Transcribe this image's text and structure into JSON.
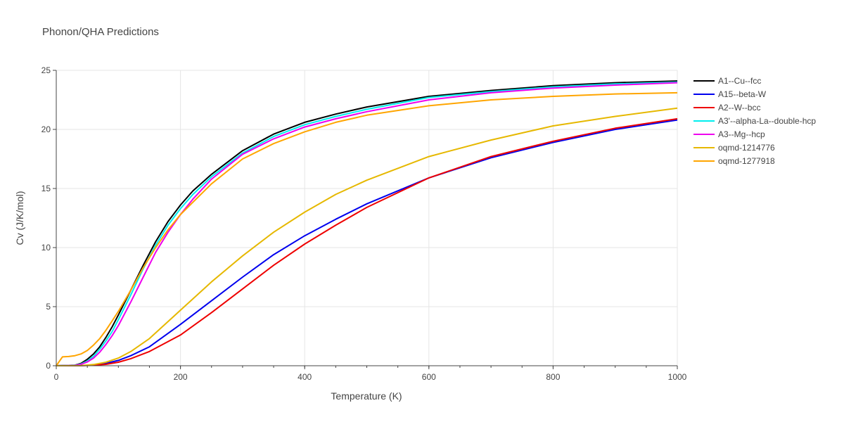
{
  "chart_data": {
    "type": "line",
    "title": "Phonon/QHA Predictions",
    "xlabel": "Temperature (K)",
    "ylabel": "Cv (J/K/mol)",
    "xlim": [
      0,
      1000
    ],
    "ylim": [
      0,
      25
    ],
    "xticks": [
      "0",
      "200",
      "400",
      "600",
      "800",
      "1000"
    ],
    "yticks": [
      "0",
      "5",
      "10",
      "15",
      "20",
      "25"
    ],
    "grid": true,
    "legend_position": "top-right",
    "series": [
      {
        "name": "A1--Cu--fcc",
        "color": "#000000",
        "x": [
          0,
          30,
          40,
          50,
          60,
          70,
          80,
          90,
          100,
          120,
          140,
          160,
          180,
          200,
          220,
          250,
          300,
          350,
          400,
          450,
          500,
          600,
          700,
          800,
          900,
          1000
        ],
        "y": [
          0,
          0.05,
          0.2,
          0.55,
          1.0,
          1.6,
          2.4,
          3.3,
          4.3,
          6.4,
          8.5,
          10.5,
          12.2,
          13.6,
          14.8,
          16.2,
          18.2,
          19.6,
          20.6,
          21.3,
          21.9,
          22.8,
          23.3,
          23.7,
          23.95,
          24.1
        ]
      },
      {
        "name": "A15--beta-W",
        "color": "#0000ee",
        "x": [
          0,
          40,
          60,
          80,
          100,
          120,
          150,
          200,
          250,
          300,
          350,
          400,
          450,
          500,
          600,
          700,
          800,
          900,
          1000
        ],
        "y": [
          0,
          0.01,
          0.05,
          0.2,
          0.45,
          0.85,
          1.6,
          3.5,
          5.5,
          7.5,
          9.4,
          11.0,
          12.4,
          13.7,
          15.9,
          17.6,
          18.9,
          20.0,
          20.8
        ]
      },
      {
        "name": "A2--W--bcc",
        "color": "#ee0000",
        "x": [
          0,
          40,
          60,
          80,
          100,
          120,
          150,
          200,
          250,
          300,
          350,
          400,
          450,
          500,
          600,
          700,
          800,
          900,
          1000
        ],
        "y": [
          0,
          0.01,
          0.04,
          0.12,
          0.3,
          0.6,
          1.2,
          2.6,
          4.5,
          6.5,
          8.5,
          10.3,
          11.9,
          13.4,
          15.9,
          17.7,
          19.0,
          20.1,
          20.9
        ]
      },
      {
        "name": "A3'--alpha-La--double-hcp",
        "color": "#00eeee",
        "x": [
          0,
          30,
          40,
          50,
          60,
          70,
          80,
          90,
          100,
          120,
          140,
          160,
          180,
          200,
          220,
          250,
          300,
          350,
          400,
          450,
          500,
          600,
          700,
          800,
          900,
          1000
        ],
        "y": [
          0,
          0.04,
          0.15,
          0.4,
          0.8,
          1.4,
          2.1,
          2.9,
          3.9,
          6.0,
          8.2,
          10.2,
          11.9,
          13.3,
          14.5,
          16.0,
          18.0,
          19.4,
          20.4,
          21.1,
          21.7,
          22.7,
          23.2,
          23.6,
          23.85,
          24.0
        ]
      },
      {
        "name": "A3--Mg--hcp",
        "color": "#ee00ee",
        "x": [
          0,
          30,
          40,
          50,
          60,
          70,
          80,
          90,
          100,
          120,
          140,
          160,
          180,
          200,
          220,
          250,
          300,
          350,
          400,
          450,
          500,
          600,
          700,
          800,
          900,
          1000
        ],
        "y": [
          0,
          0.03,
          0.12,
          0.32,
          0.65,
          1.15,
          1.8,
          2.55,
          3.4,
          5.4,
          7.5,
          9.6,
          11.3,
          12.8,
          14.1,
          15.8,
          17.9,
          19.2,
          20.2,
          20.9,
          21.5,
          22.5,
          23.1,
          23.5,
          23.75,
          23.95
        ]
      },
      {
        "name": "oqmd-1214776",
        "color": "#e6b800",
        "x": [
          0,
          40,
          60,
          80,
          100,
          120,
          150,
          200,
          250,
          300,
          350,
          400,
          450,
          500,
          600,
          700,
          800,
          900,
          1000
        ],
        "y": [
          0,
          0.02,
          0.1,
          0.3,
          0.65,
          1.2,
          2.3,
          4.7,
          7.1,
          9.3,
          11.3,
          13.0,
          14.5,
          15.7,
          17.7,
          19.1,
          20.3,
          21.1,
          21.8
        ]
      },
      {
        "name": "oqmd-1277918",
        "color": "#ffa500",
        "x": [
          0,
          10,
          20,
          30,
          40,
          50,
          60,
          70,
          80,
          90,
          100,
          120,
          140,
          160,
          180,
          200,
          250,
          300,
          350,
          400,
          450,
          500,
          600,
          700,
          800,
          900,
          1000
        ],
        "y": [
          0,
          0.75,
          0.78,
          0.85,
          1.0,
          1.3,
          1.75,
          2.3,
          3.0,
          3.8,
          4.6,
          6.4,
          8.3,
          10.0,
          11.5,
          12.8,
          15.4,
          17.5,
          18.8,
          19.8,
          20.6,
          21.2,
          22.0,
          22.5,
          22.8,
          23.0,
          23.1
        ]
      }
    ]
  }
}
